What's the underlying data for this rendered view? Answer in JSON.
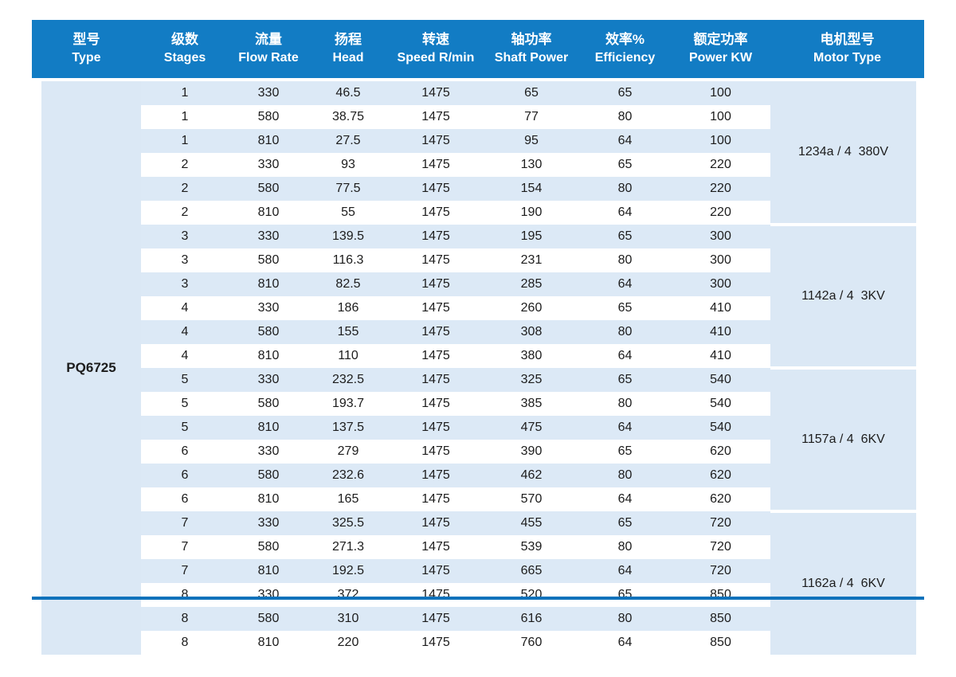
{
  "colors": {
    "header_blue": "#127cc4",
    "stripe_blue": "#dce9f6",
    "panel_blue": "#dbe8f5",
    "bottom_rule_blue": "#0f72bb",
    "header_text": "#ffffff",
    "body_text": "#1c1c1c"
  },
  "header": {
    "columns": [
      {
        "id": "type",
        "zh": "型号",
        "en": "Type"
      },
      {
        "id": "stages",
        "zh": "级数",
        "en": "Stages"
      },
      {
        "id": "flow-rate",
        "zh": "流量",
        "en": "Flow Rate"
      },
      {
        "id": "head",
        "zh": "扬程",
        "en": "Head"
      },
      {
        "id": "speed",
        "zh": "转速",
        "en": "Speed R/min"
      },
      {
        "id": "shaft-power",
        "zh": "轴功率",
        "en": "Shaft Power"
      },
      {
        "id": "efficiency",
        "zh": "效率%",
        "en": "Efficiency"
      },
      {
        "id": "power-kw",
        "zh": "额定功率",
        "en": "Power KW"
      },
      {
        "id": "motor-type",
        "zh": "电机型号",
        "en": "Motor Type"
      }
    ]
  },
  "pump_type": "PQ6725",
  "groups": [
    {
      "motor_type": "1234a / 4  380V",
      "rows": [
        [
          "1",
          "330",
          "46.5",
          "1475",
          "65",
          "65",
          "100"
        ],
        [
          "1",
          "580",
          "38.75",
          "1475",
          "77",
          "80",
          "100"
        ],
        [
          "1",
          "810",
          "27.5",
          "1475",
          "95",
          "64",
          "100"
        ],
        [
          "2",
          "330",
          "93",
          "1475",
          "130",
          "65",
          "220"
        ],
        [
          "2",
          "580",
          "77.5",
          "1475",
          "154",
          "80",
          "220"
        ],
        [
          "2",
          "810",
          "55",
          "1475",
          "190",
          "64",
          "220"
        ]
      ]
    },
    {
      "motor_type": "1142a / 4  3KV",
      "rows": [
        [
          "3",
          "330",
          "139.5",
          "1475",
          "195",
          "65",
          "300"
        ],
        [
          "3",
          "580",
          "116.3",
          "1475",
          "231",
          "80",
          "300"
        ],
        [
          "3",
          "810",
          "82.5",
          "1475",
          "285",
          "64",
          "300"
        ],
        [
          "4",
          "330",
          "186",
          "1475",
          "260",
          "65",
          "410"
        ],
        [
          "4",
          "580",
          "155",
          "1475",
          "308",
          "80",
          "410"
        ],
        [
          "4",
          "810",
          "110",
          "1475",
          "380",
          "64",
          "410"
        ]
      ]
    },
    {
      "motor_type": "1157a / 4  6KV",
      "rows": [
        [
          "5",
          "330",
          "232.5",
          "1475",
          "325",
          "65",
          "540"
        ],
        [
          "5",
          "580",
          "193.7",
          "1475",
          "385",
          "80",
          "540"
        ],
        [
          "5",
          "810",
          "137.5",
          "1475",
          "475",
          "64",
          "540"
        ],
        [
          "6",
          "330",
          "279",
          "1475",
          "390",
          "65",
          "620"
        ],
        [
          "6",
          "580",
          "232.6",
          "1475",
          "462",
          "80",
          "620"
        ],
        [
          "6",
          "810",
          "165",
          "1475",
          "570",
          "64",
          "620"
        ]
      ]
    },
    {
      "motor_type": "1162a / 4  6KV",
      "rows": [
        [
          "7",
          "330",
          "325.5",
          "1475",
          "455",
          "65",
          "720"
        ],
        [
          "7",
          "580",
          "271.3",
          "1475",
          "539",
          "80",
          "720"
        ],
        [
          "7",
          "810",
          "192.5",
          "1475",
          "665",
          "64",
          "720"
        ],
        [
          "8",
          "330",
          "372",
          "1475",
          "520",
          "65",
          "850"
        ],
        [
          "8",
          "580",
          "310",
          "1475",
          "616",
          "80",
          "850"
        ],
        [
          "8",
          "810",
          "220",
          "1475",
          "760",
          "64",
          "850"
        ]
      ]
    }
  ]
}
